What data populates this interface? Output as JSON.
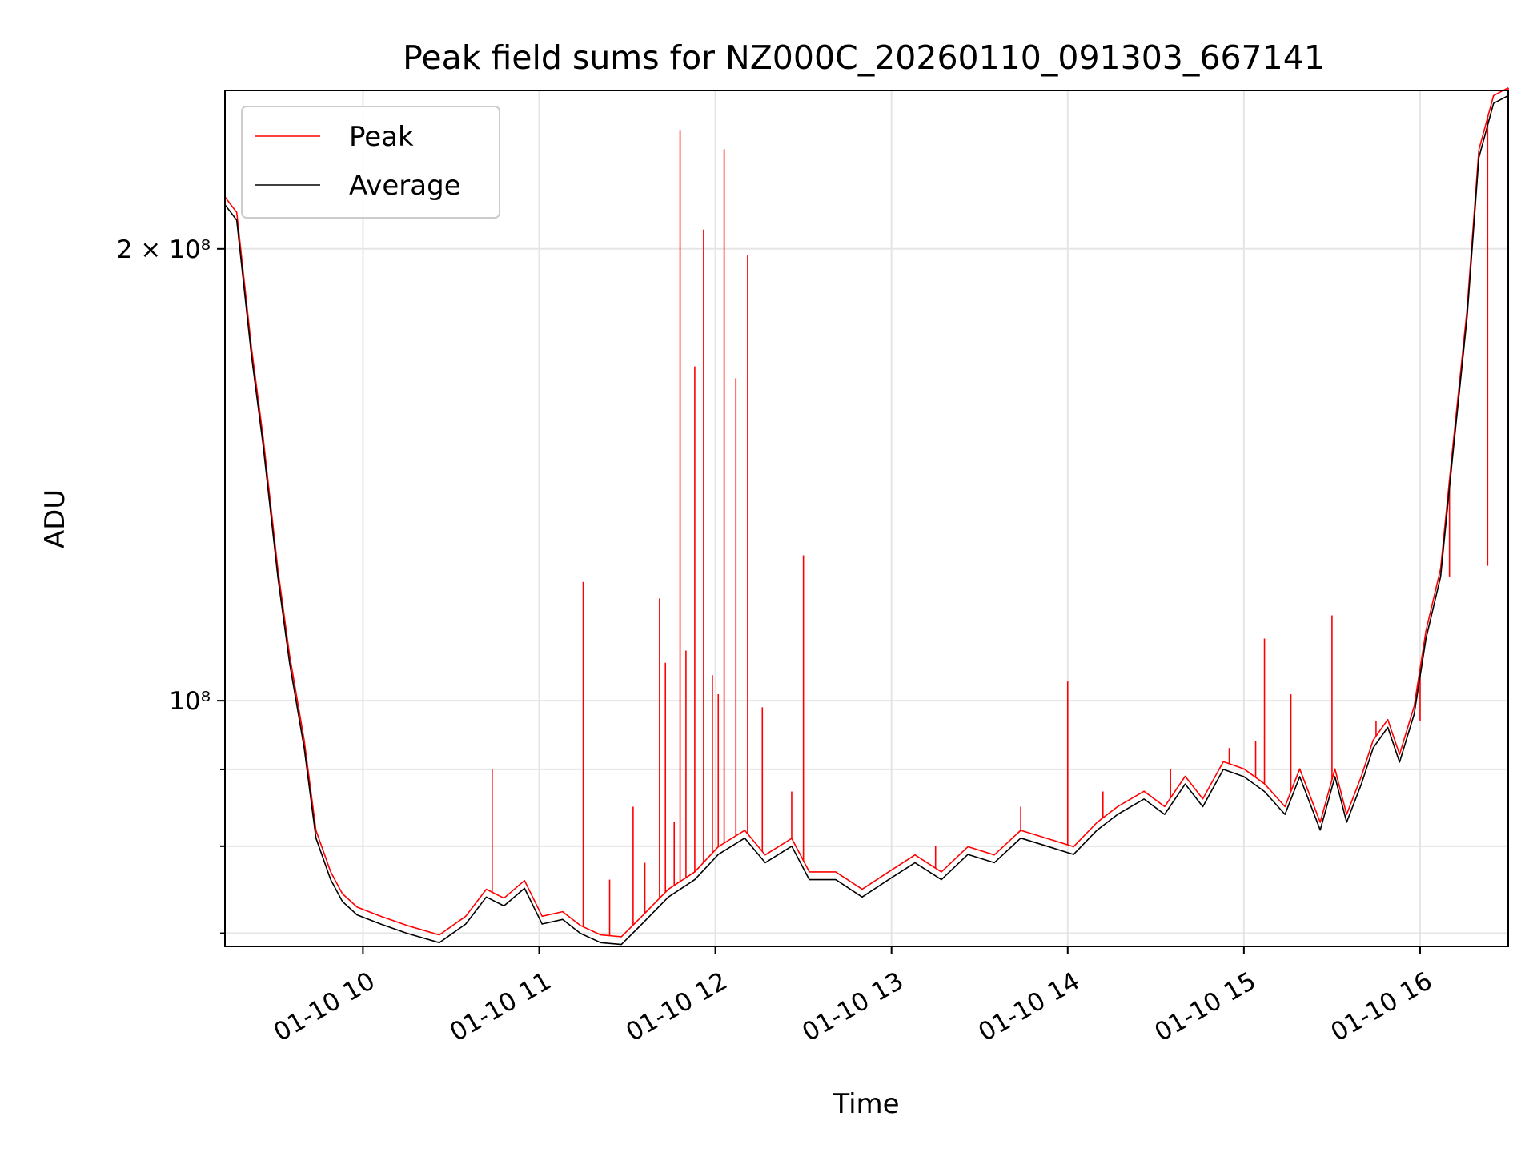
{
  "chart_data": {
    "type": "line",
    "title": "Peak field sums for NZ000C_20260110_091303_667141",
    "xlabel": "Time",
    "ylabel": "ADU",
    "yscale": "log",
    "xlim": [
      "2026-01-10 09:13",
      "2026-01-10 16:30"
    ],
    "ylim": [
      68600000,
      255000000
    ],
    "grid": true,
    "legend": "upper left",
    "x_ticks": [
      {
        "value": "2026-01-10 10:00",
        "label": "01-10 10"
      },
      {
        "value": "2026-01-10 11:00",
        "label": "01-10 11"
      },
      {
        "value": "2026-01-10 12:00",
        "label": "01-10 12"
      },
      {
        "value": "2026-01-10 13:00",
        "label": "01-10 13"
      },
      {
        "value": "2026-01-10 14:00",
        "label": "01-10 14"
      },
      {
        "value": "2026-01-10 15:00",
        "label": "01-10 15"
      },
      {
        "value": "2026-01-10 16:00",
        "label": "01-10 16"
      }
    ],
    "y_ticks": [
      {
        "value": 200000000,
        "label": "2 × 10⁸"
      },
      {
        "value": 100000000,
        "label": "10⁸"
      }
    ],
    "y_minor_ticks": [
      70000000,
      80000000,
      90000000
    ],
    "series": [
      {
        "name": "Peak",
        "color": "#ff0000",
        "spikes": [
          {
            "x": "2026-01-10 10:44",
            "y": 90000000
          },
          {
            "x": "2026-01-10 11:15",
            "y": 120000000
          },
          {
            "x": "2026-01-10 11:24",
            "y": 76000000
          },
          {
            "x": "2026-01-10 11:32",
            "y": 85000000
          },
          {
            "x": "2026-01-10 11:36",
            "y": 78000000
          },
          {
            "x": "2026-01-10 11:41",
            "y": 117000000
          },
          {
            "x": "2026-01-10 11:43",
            "y": 106000000
          },
          {
            "x": "2026-01-10 11:46",
            "y": 83000000
          },
          {
            "x": "2026-01-10 11:48",
            "y": 240000000
          },
          {
            "x": "2026-01-10 11:50",
            "y": 108000000
          },
          {
            "x": "2026-01-10 11:53",
            "y": 167000000
          },
          {
            "x": "2026-01-10 11:56",
            "y": 206000000
          },
          {
            "x": "2026-01-10 11:59",
            "y": 104000000
          },
          {
            "x": "2026-01-10 12:01",
            "y": 101000000
          },
          {
            "x": "2026-01-10 12:03",
            "y": 233000000
          },
          {
            "x": "2026-01-10 12:07",
            "y": 164000000
          },
          {
            "x": "2026-01-10 12:11",
            "y": 198000000
          },
          {
            "x": "2026-01-10 12:16",
            "y": 99000000
          },
          {
            "x": "2026-01-10 12:26",
            "y": 87000000
          },
          {
            "x": "2026-01-10 12:30",
            "y": 125000000
          },
          {
            "x": "2026-01-10 13:15",
            "y": 80000000
          },
          {
            "x": "2026-01-10 13:44",
            "y": 85000000
          },
          {
            "x": "2026-01-10 14:00",
            "y": 103000000
          },
          {
            "x": "2026-01-10 14:12",
            "y": 87000000
          },
          {
            "x": "2026-01-10 14:35",
            "y": 90000000
          },
          {
            "x": "2026-01-10 14:55",
            "y": 93000000
          },
          {
            "x": "2026-01-10 15:04",
            "y": 94000000
          },
          {
            "x": "2026-01-10 15:07",
            "y": 110000000
          },
          {
            "x": "2026-01-10 15:16",
            "y": 101000000
          },
          {
            "x": "2026-01-10 15:30",
            "y": 114000000
          },
          {
            "x": "2026-01-10 15:45",
            "y": 97000000
          },
          {
            "x": "2026-01-10 16:00",
            "y": 97000000
          },
          {
            "x": "2026-01-10 16:10",
            "y": 121000000
          },
          {
            "x": "2026-01-10 16:23",
            "y": 123000000
          },
          {
            "x": "2026-01-10 16:30",
            "y": 196000000
          }
        ]
      },
      {
        "name": "Average",
        "color": "#000000",
        "x": [
          "2026-01-10 09:13",
          "2026-01-10 09:17",
          "2026-01-10 09:22",
          "2026-01-10 09:26",
          "2026-01-10 09:31",
          "2026-01-10 09:35",
          "2026-01-10 09:40",
          "2026-01-10 09:44",
          "2026-01-10 09:49",
          "2026-01-10 09:53",
          "2026-01-10 09:58",
          "2026-01-10 10:06",
          "2026-01-10 10:15",
          "2026-01-10 10:26",
          "2026-01-10 10:35",
          "2026-01-10 10:42",
          "2026-01-10 10:48",
          "2026-01-10 10:55",
          "2026-01-10 11:01",
          "2026-01-10 11:08",
          "2026-01-10 11:14",
          "2026-01-10 11:21",
          "2026-01-10 11:28",
          "2026-01-10 11:35",
          "2026-01-10 11:44",
          "2026-01-10 11:53",
          "2026-01-10 12:01",
          "2026-01-10 12:10",
          "2026-01-10 12:17",
          "2026-01-10 12:26",
          "2026-01-10 12:32",
          "2026-01-10 12:41",
          "2026-01-10 12:50",
          "2026-01-10 12:59",
          "2026-01-10 13:08",
          "2026-01-10 13:17",
          "2026-01-10 13:26",
          "2026-01-10 13:35",
          "2026-01-10 13:44",
          "2026-01-10 13:53",
          "2026-01-10 14:02",
          "2026-01-10 14:10",
          "2026-01-10 14:17",
          "2026-01-10 14:26",
          "2026-01-10 14:33",
          "2026-01-10 14:40",
          "2026-01-10 14:46",
          "2026-01-10 14:53",
          "2026-01-10 15:00",
          "2026-01-10 15:07",
          "2026-01-10 15:14",
          "2026-01-10 15:19",
          "2026-01-10 15:26",
          "2026-01-10 15:31",
          "2026-01-10 15:35",
          "2026-01-10 15:40",
          "2026-01-10 15:44",
          "2026-01-10 15:49",
          "2026-01-10 15:53",
          "2026-01-10 15:58",
          "2026-01-10 16:02",
          "2026-01-10 16:07",
          "2026-01-10 16:11",
          "2026-01-10 16:16",
          "2026-01-10 16:20",
          "2026-01-10 16:25",
          "2026-01-10 16:30"
        ],
        "values": [
          214000000,
          209000000,
          170000000,
          148000000,
          121000000,
          106000000,
          93000000,
          81000000,
          76000000,
          73500000,
          72000000,
          71000000,
          70000000,
          69000000,
          71000000,
          74000000,
          73000000,
          75000000,
          71000000,
          71500000,
          70000000,
          69000000,
          68800000,
          71000000,
          74000000,
          76000000,
          79000000,
          81000000,
          78000000,
          80000000,
          76000000,
          76000000,
          74000000,
          76000000,
          78000000,
          76000000,
          79000000,
          78000000,
          81000000,
          80000000,
          79000000,
          82000000,
          84000000,
          86000000,
          84000000,
          88000000,
          85000000,
          90000000,
          89000000,
          87000000,
          84000000,
          89000000,
          82000000,
          89000000,
          83000000,
          88000000,
          93000000,
          96000000,
          91000000,
          98000000,
          110000000,
          121000000,
          145000000,
          180000000,
          230000000,
          250000000,
          253000000
        ]
      }
    ]
  }
}
